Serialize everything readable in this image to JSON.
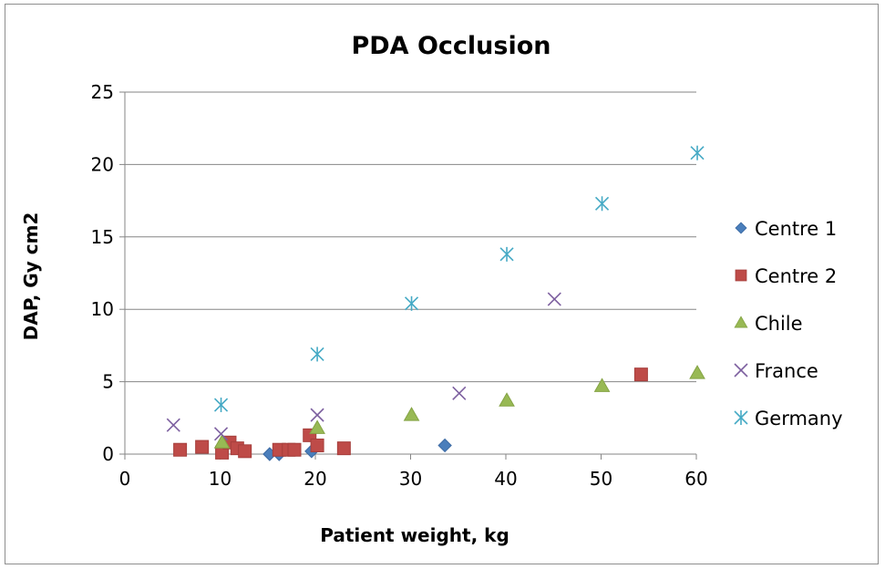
{
  "chart_data": {
    "type": "scatter",
    "title": "PDA Occlusion",
    "xlabel": "Patient weight, kg",
    "ylabel": "DAP, Gy cm2",
    "xlim": [
      0,
      60
    ],
    "ylim": [
      0,
      25
    ],
    "xticks": [
      "0",
      "10",
      "20",
      "30",
      "40",
      "50",
      "60"
    ],
    "yticks": [
      "0",
      "5",
      "10",
      "15",
      "20",
      "25"
    ],
    "grid": "horizontal",
    "legend_position": "right",
    "series": [
      {
        "name": "Centre 1",
        "marker": "diamond",
        "color": "#4a7ebb",
        "points": [
          [
            15.2,
            0.0
          ],
          [
            16.2,
            0.0
          ],
          [
            19.6,
            0.2
          ],
          [
            33.6,
            0.6
          ]
        ]
      },
      {
        "name": "Centre 2",
        "marker": "square",
        "color": "#be4b48",
        "points": [
          [
            5.8,
            0.3
          ],
          [
            8.1,
            0.5
          ],
          [
            10.2,
            0.1
          ],
          [
            11.0,
            0.8
          ],
          [
            11.8,
            0.4
          ],
          [
            12.6,
            0.2
          ],
          [
            16.2,
            0.3
          ],
          [
            17.2,
            0.3
          ],
          [
            17.8,
            0.3
          ],
          [
            19.4,
            1.3
          ],
          [
            20.2,
            0.6
          ],
          [
            23.0,
            0.4
          ],
          [
            54.2,
            5.5
          ]
        ]
      },
      {
        "name": "Chile",
        "marker": "triangle",
        "color": "#98b954",
        "points": [
          [
            10.2,
            0.8
          ],
          [
            20.2,
            1.8
          ],
          [
            30.1,
            2.7
          ],
          [
            40.1,
            3.7
          ],
          [
            50.1,
            4.7
          ],
          [
            60.1,
            5.6
          ]
        ]
      },
      {
        "name": "France",
        "marker": "x",
        "color": "#7d60a0",
        "points": [
          [
            5.1,
            2.0
          ],
          [
            10.1,
            1.4
          ],
          [
            20.2,
            2.7
          ],
          [
            35.1,
            4.2
          ],
          [
            45.1,
            10.7
          ]
        ]
      },
      {
        "name": "Germany",
        "marker": "asterisk",
        "color": "#46aac5",
        "points": [
          [
            10.1,
            3.4
          ],
          [
            20.2,
            6.9
          ],
          [
            30.1,
            10.4
          ],
          [
            40.1,
            13.8
          ],
          [
            50.1,
            17.3
          ],
          [
            60.1,
            20.8
          ]
        ]
      }
    ]
  }
}
